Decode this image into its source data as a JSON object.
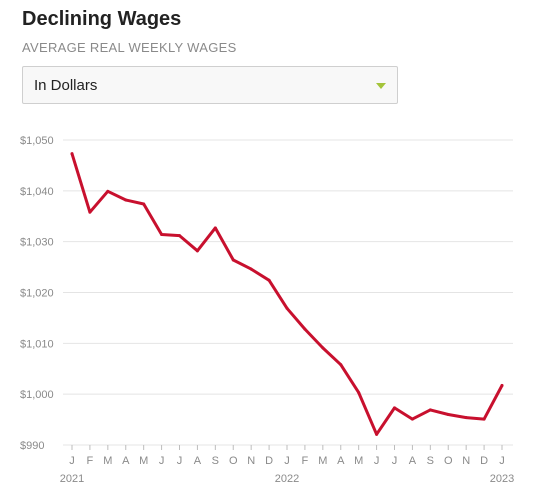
{
  "header": {
    "title": "Declining Wages",
    "subtitle": "AVERAGE REAL WEEKLY WAGES"
  },
  "selector": {
    "value": "In Dollars",
    "caret_icon": "caret-down-icon",
    "caret_color": "#a4c43a"
  },
  "chart_data": {
    "type": "line",
    "title": "Declining Wages",
    "subtitle": "AVERAGE REAL WEEKLY WAGES",
    "xlabel": "",
    "ylabel": "",
    "grid": true,
    "ylim": [
      990,
      1050
    ],
    "y_ticks": [
      990,
      1000,
      1010,
      1020,
      1030,
      1040,
      1050
    ],
    "y_tick_labels": [
      "$990",
      "$1,000",
      "$1,010",
      "$1,020",
      "$1,030",
      "$1,040",
      "$1,050"
    ],
    "x": [
      "2021-01",
      "2021-02",
      "2021-03",
      "2021-04",
      "2021-05",
      "2021-06",
      "2021-07",
      "2021-08",
      "2021-09",
      "2021-10",
      "2021-11",
      "2021-12",
      "2022-01",
      "2022-02",
      "2022-03",
      "2022-04",
      "2022-05",
      "2022-06",
      "2022-07",
      "2022-08",
      "2022-09",
      "2022-10",
      "2022-11",
      "2022-12",
      "2023-01"
    ],
    "x_tick_labels": [
      "J",
      "F",
      "M",
      "A",
      "M",
      "J",
      "J",
      "A",
      "S",
      "O",
      "N",
      "D",
      "J",
      "F",
      "M",
      "A",
      "M",
      "J",
      "J",
      "A",
      "S",
      "O",
      "N",
      "D",
      "J"
    ],
    "year_labels": [
      {
        "at": "2021-01",
        "label": "2021"
      },
      {
        "at": "2022-01",
        "label": "2022"
      },
      {
        "at": "2023-01",
        "label": "2023"
      }
    ],
    "series": [
      {
        "color": "#c8102e",
        "values": [
          1047.3,
          1035.8,
          1039.9,
          1038.2,
          1037.4,
          1031.4,
          1031.2,
          1028.2,
          1032.7,
          1026.4,
          1024.6,
          1022.4,
          1016.9,
          1012.8,
          1009.1,
          1005.8,
          1000.3,
          992.1,
          997.3,
          995.1,
          996.9,
          996.0,
          995.4,
          995.1,
          1001.7
        ]
      }
    ]
  }
}
